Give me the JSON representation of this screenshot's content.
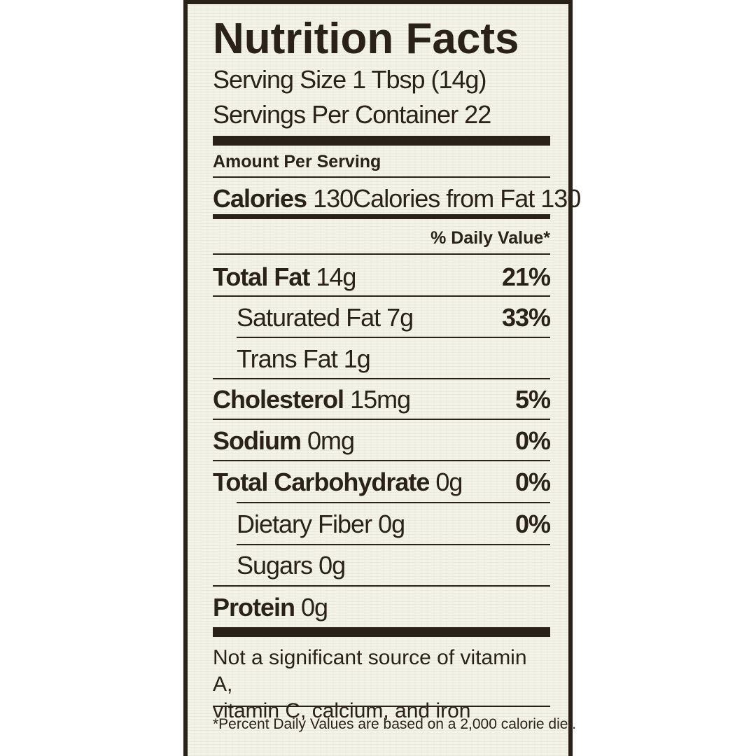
{
  "label": {
    "title": "Nutrition Facts",
    "serving_size": "Serving Size 1 Tbsp (14g)",
    "servings_per_container": "Servings Per Container 22",
    "amount_per_serving": "Amount Per Serving",
    "calories_label": "Calories",
    "calories_value": "130",
    "calories_from_fat": "Calories from Fat 130",
    "daily_value_header": "% Daily Value*",
    "nutrients": [
      {
        "name": "Total Fat",
        "amount": "14g",
        "dv": "21%"
      },
      {
        "name": "Saturated Fat",
        "amount": "7g",
        "dv": "33%"
      },
      {
        "name": "Trans Fat",
        "amount": "1g",
        "dv": ""
      },
      {
        "name": "Cholesterol",
        "amount": "15mg",
        "dv": "5%"
      },
      {
        "name": "Sodium",
        "amount": "0mg",
        "dv": "0%"
      },
      {
        "name": "Total Carbohydrate",
        "amount": "0g",
        "dv": "0%"
      },
      {
        "name": "Dietary Fiber",
        "amount": "0g",
        "dv": "0%"
      },
      {
        "name": "Sugars",
        "amount": "0g",
        "dv": ""
      },
      {
        "name": "Protein",
        "amount": "0g",
        "dv": ""
      }
    ],
    "vitamin_note_line1": "Not a significant source of vitamin A,",
    "vitamin_note_line2": "vitamin C, calcium, and iron",
    "footnote": "*Percent Daily Values are based on a 2,000 calorie diet."
  },
  "colors": {
    "ink": "#2a2118",
    "paper": "#f4f3e8"
  }
}
